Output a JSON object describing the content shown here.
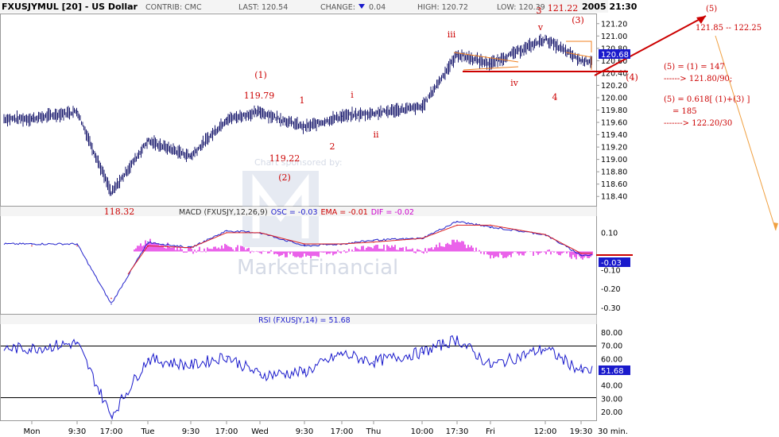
{
  "header": {
    "symbol": "FXUSJYMUL [20] - US Dollar",
    "contrib": "CONTRIB: CMC",
    "last": "LAST: 120.54",
    "change_label": "CHANGE:",
    "change_value": "0.04",
    "high": "HIGH: 120.72",
    "low": "LOW: 120.39",
    "time": "2005 21:30"
  },
  "watermark": {
    "sponsor": "Chart sponsored by:",
    "brand": "MarketFinancial"
  },
  "price_panel": {
    "ticks": [
      "121.20",
      "121.00",
      "120.80",
      "120.60",
      "120.40",
      "120.20",
      "120.00",
      "119.80",
      "119.60",
      "119.40",
      "119.20",
      "119.00",
      "118.80",
      "118.60",
      "118.40"
    ],
    "last_box": "120.68",
    "annotations": [
      {
        "id": "ann-1-paren",
        "text": "(1)"
      },
      {
        "id": "ann-11979",
        "text": "119.79"
      },
      {
        "id": "ann-1",
        "text": "1"
      },
      {
        "id": "ann-i",
        "text": "i"
      },
      {
        "id": "ann-2",
        "text": "2"
      },
      {
        "id": "ann-ii",
        "text": "ii"
      },
      {
        "id": "ann-11922",
        "text": "119.22"
      },
      {
        "id": "ann-2-paren",
        "text": "(2)"
      },
      {
        "id": "ann-11832",
        "text": "118.32"
      },
      {
        "id": "ann-iii",
        "text": "iii"
      },
      {
        "id": "ann-iv",
        "text": "iv"
      },
      {
        "id": "ann-v",
        "text": "v"
      },
      {
        "id": "ann-3",
        "text": "3"
      },
      {
        "id": "ann-12122",
        "text": "121.22"
      },
      {
        "id": "ann-3-paren",
        "text": "(3)"
      },
      {
        "id": "ann-4",
        "text": "4"
      },
      {
        "id": "ann-4-paren",
        "text": "(4)"
      }
    ]
  },
  "projection": {
    "target_label": "(5)",
    "target_range": "121.85 -- 122.25",
    "notes": [
      "(5)  =  (1)  =  147",
      "------> 121.80/90;",
      "(5)  =  0.618[ (1)+(3) ]",
      "=  185",
      "-------> 122.20/30"
    ]
  },
  "macd_panel": {
    "title_prefix": "MACD (FXUSJY,12,26,9)",
    "osc": "OSC = -0.03",
    "ema": "EMA = -0.01",
    "dif": "DIF = -0.02",
    "ticks": [
      "0.10",
      "-0.10",
      "-0.20",
      "-0.30"
    ],
    "last_box": "-0.03"
  },
  "rsi_panel": {
    "title": "RSI (FXUSJY,14) = 51.68",
    "ticks": [
      "80.00",
      "70.00",
      "60.00",
      "50.00",
      "40.00",
      "30.00",
      "20.00"
    ],
    "last_box": "51.68"
  },
  "x_axis": {
    "labels": [
      "Mon",
      "9:30",
      "17:00",
      "Tue",
      "9:30",
      "17:00",
      "Wed",
      "9:30",
      "17:00",
      "Thu",
      "10:00",
      "17:30",
      "Fri",
      "12:00",
      "19:30"
    ],
    "interval": "30 min."
  },
  "colors": {
    "price": "#1a1a6e",
    "macd_line": "#2222cc",
    "signal_line": "#dd2222",
    "histogram": "#e020e0",
    "annotation": "#cc0000",
    "trendline": "#f08020",
    "axis_box": "#1a1acc"
  },
  "chart_data": [
    {
      "type": "line",
      "ylabel": "",
      "ylim": [
        118.3,
        121.3
      ],
      "categories": [
        "Mon",
        "9:30",
        "17:00",
        "Tue",
        "9:30",
        "17:00",
        "Wed",
        "9:30",
        "17:00",
        "Thu",
        "10:00",
        "17:30",
        "Fri",
        "12:00",
        "19:30"
      ],
      "series": [
        {
          "values": [
            119.66,
            119.78,
            118.45,
            119.3,
            119.05,
            119.65,
            119.77,
            119.52,
            119.7,
            119.75,
            119.85,
            120.7,
            120.55,
            120.95,
            120.6
          ]
        }
      ]
    },
    {
      "type": "line",
      "ylim": [
        -0.32,
        0.18
      ],
      "categories": [
        "Mon",
        "9:30",
        "17:00",
        "Tue",
        "9:30",
        "17:00",
        "Wed",
        "9:30",
        "17:00",
        "Thu",
        "10:00",
        "17:30",
        "Fri",
        "12:00",
        "19:30"
      ],
      "series": [
        {
          "values": [
            0.04,
            0.04,
            -0.28,
            0.05,
            0.02,
            0.11,
            0.1,
            0.03,
            0.04,
            0.06,
            0.07,
            0.16,
            0.13,
            0.09,
            -0.02
          ]
        },
        {
          "values": [
            0.03,
            0.03,
            -0.25,
            0.03,
            0.02,
            0.1,
            0.1,
            0.04,
            0.04,
            0.05,
            0.07,
            0.14,
            0.14,
            0.09,
            -0.01
          ]
        }
      ]
    },
    {
      "type": "line",
      "ylim": [
        15,
        85
      ],
      "categories": [
        "Mon",
        "9:30",
        "17:00",
        "Tue",
        "9:30",
        "17:00",
        "Wed",
        "9:30",
        "17:00",
        "Thu",
        "10:00",
        "17:30",
        "Fri",
        "12:00",
        "19:30"
      ],
      "series": [
        {
          "values": [
            68,
            72,
            17,
            60,
            55,
            62,
            48,
            50,
            64,
            58,
            65,
            75,
            55,
            68,
            51
          ]
        }
      ]
    }
  ]
}
